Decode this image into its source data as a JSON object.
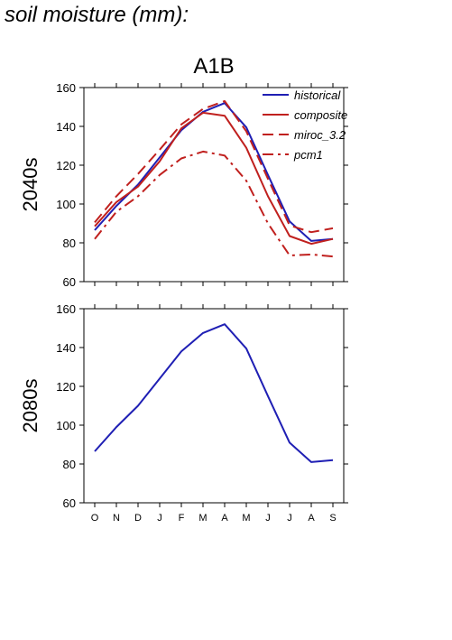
{
  "figure_title": "soil moisture (mm):",
  "colors": {
    "historical": "#1f1fb4",
    "future": "#c0201e",
    "axis": "#000000"
  },
  "chart_data": [
    {
      "type": "line",
      "title": "A1B",
      "ylabel": "2040s",
      "ylim": [
        60,
        160
      ],
      "yticks": [
        60,
        80,
        100,
        120,
        140,
        160
      ],
      "x": [
        "O",
        "N",
        "D",
        "J",
        "F",
        "M",
        "A",
        "M",
        "J",
        "J",
        "A",
        "S"
      ],
      "legend_position": "top-right",
      "series": [
        {
          "name": "historical",
          "style": "solid",
          "color": "#1f1fb4",
          "values": [
            86.5,
            99,
            110,
            124,
            138,
            147.5,
            152,
            139.5,
            115,
            91,
            81,
            82
          ]
        },
        {
          "name": "composite",
          "style": "solid",
          "color": "#c0201e",
          "values": [
            88.5,
            101,
            109,
            122,
            139,
            147,
            145.5,
            129,
            104,
            83.5,
            79.5,
            82
          ]
        },
        {
          "name": "miroc_3.2",
          "style": "dashed",
          "color": "#c0201e",
          "values": [
            90.5,
            104,
            115.5,
            128,
            141,
            149,
            153,
            137.5,
            113,
            89,
            85.5,
            87.5
          ]
        },
        {
          "name": "pcm1",
          "style": "dashdot",
          "color": "#c0201e",
          "values": [
            82,
            96,
            104,
            115,
            123.5,
            127,
            125,
            112,
            90,
            73.5,
            74,
            73
          ]
        }
      ]
    },
    {
      "type": "line",
      "ylabel": "2080s",
      "ylim": [
        60,
        160
      ],
      "yticks": [
        60,
        80,
        100,
        120,
        140,
        160
      ],
      "x": [
        "O",
        "N",
        "D",
        "J",
        "F",
        "M",
        "A",
        "M",
        "J",
        "J",
        "A",
        "S"
      ],
      "series": [
        {
          "style": "solid",
          "color": "#1f1fb4",
          "values": [
            86.5,
            99,
            110,
            124,
            138,
            147.5,
            152,
            139.5,
            115,
            91,
            81,
            82
          ]
        }
      ]
    }
  ]
}
